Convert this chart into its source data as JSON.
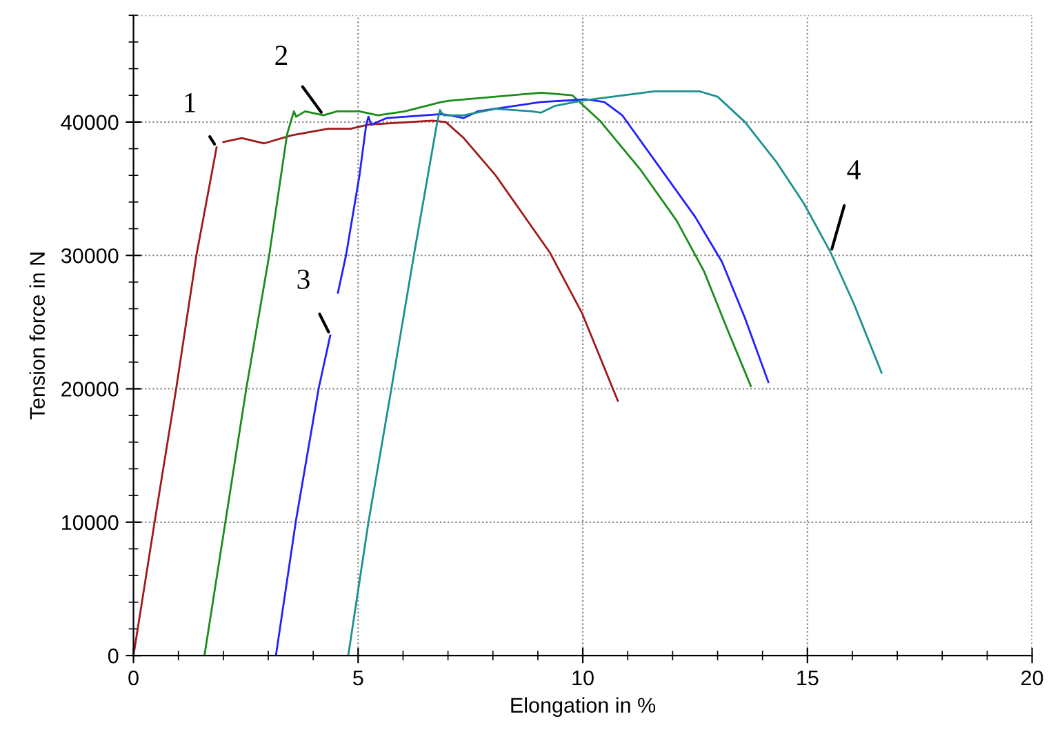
{
  "chart_data": {
    "type": "line",
    "xlabel": "Elongation in %",
    "ylabel": "Tension force in N",
    "xlim": [
      0,
      20
    ],
    "xticks": [
      0,
      5,
      10,
      15,
      20
    ],
    "ylim": [
      0,
      48000
    ],
    "yticks": [
      0,
      10000,
      20000,
      30000,
      40000
    ],
    "grid": true,
    "marker": "none",
    "line_style": "solid",
    "series": [
      {
        "name": "1",
        "color": "#a01818",
        "x": [
          0,
          0.47,
          0.95,
          1.4,
          1.85,
          null,
          2.0,
          2.41,
          2.91,
          3.52,
          4.33,
          4.83,
          5.23,
          6.65,
          6.95,
          7.35,
          8.06,
          9.27,
          9.98,
          10.78
        ],
        "values": [
          0,
          10000,
          20000,
          30000,
          38100,
          null,
          38500,
          38800,
          38400,
          39000,
          39500,
          39500,
          39800,
          40100,
          40000,
          38800,
          36000,
          30200,
          25700,
          19100
        ]
      },
      {
        "name": "2",
        "color": "#1a8c1a",
        "x": [
          1.58,
          2.51,
          3.02,
          3.42,
          3.57,
          3.62,
          3.82,
          4.23,
          4.53,
          5.03,
          5.44,
          6.04,
          6.85,
          7.05,
          9.07,
          9.77,
          10.38,
          11.29,
          12.09,
          12.7,
          13.2,
          13.74
        ],
        "values": [
          0,
          20000,
          30000,
          39100,
          40800,
          40400,
          40800,
          40500,
          40800,
          40800,
          40500,
          40800,
          41500,
          41600,
          42200,
          42000,
          40100,
          36400,
          32600,
          28800,
          24600,
          20200
        ]
      },
      {
        "name": "3",
        "color": "#2020ff",
        "x": [
          3.17,
          3.62,
          4.12,
          4.38,
          null,
          4.55,
          4.73,
          5.03,
          5.18,
          5.23,
          5.29,
          5.64,
          6.85,
          7.05,
          7.35,
          7.66,
          9.07,
          10.08,
          10.48,
          10.88,
          11.69,
          12.5,
          13.1,
          13.61,
          14.13
        ],
        "values": [
          0,
          10200,
          20000,
          24000,
          null,
          27200,
          30000,
          36000,
          39800,
          40400,
          39800,
          40300,
          40600,
          40500,
          40300,
          40800,
          41500,
          41700,
          41500,
          40500,
          36700,
          32900,
          29500,
          25300,
          20500
        ]
      },
      {
        "name": "4",
        "color": "#1a9090",
        "x": [
          4.78,
          5.23,
          5.74,
          6.24,
          6.75,
          6.82,
          6.9,
          7.35,
          8.06,
          8.87,
          9.07,
          9.37,
          9.98,
          11.59,
          12.6,
          13.0,
          13.61,
          14.31,
          14.92,
          15.52,
          16.03,
          16.65
        ],
        "values": [
          0,
          10000,
          20000,
          30000,
          39800,
          40900,
          40500,
          40500,
          41000,
          40800,
          40700,
          41200,
          41600,
          42300,
          42300,
          41900,
          40000,
          37000,
          33900,
          30200,
          26400,
          21200
        ]
      }
    ]
  }
}
